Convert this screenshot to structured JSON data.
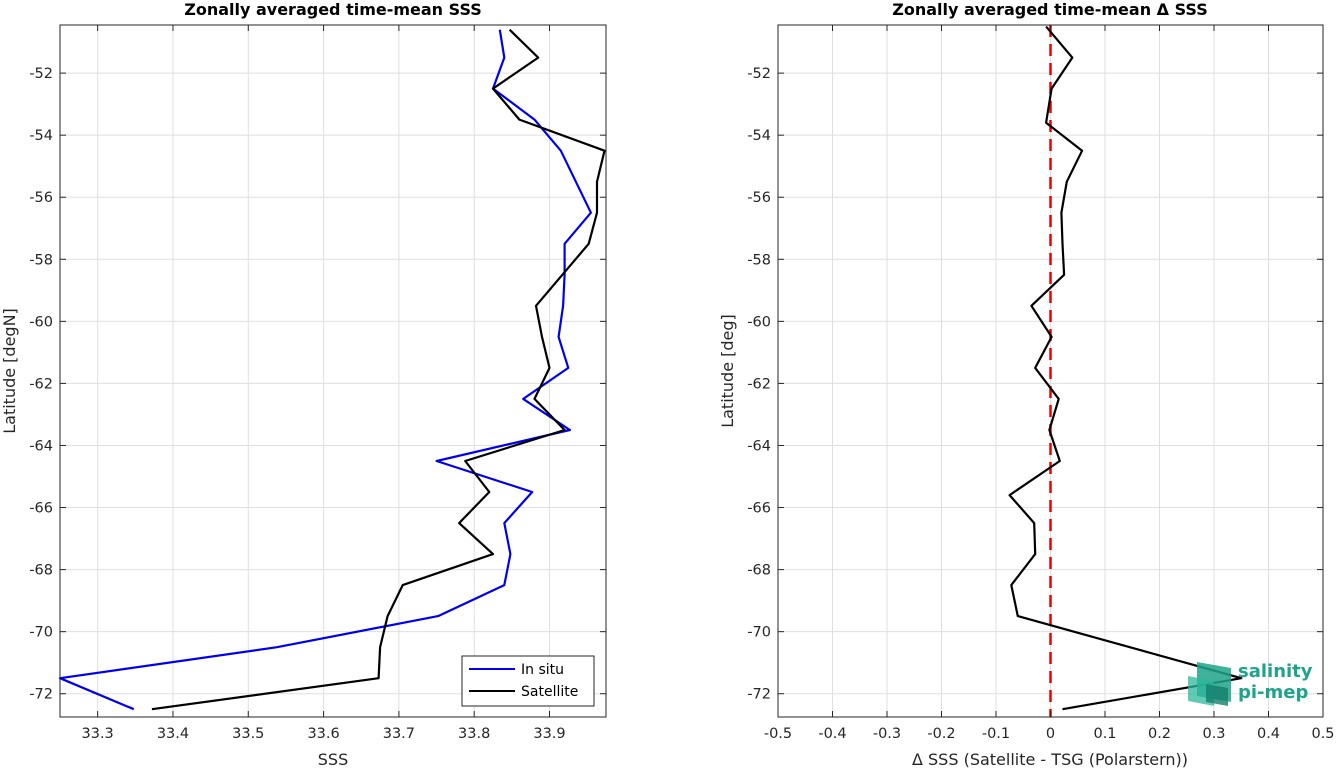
{
  "chart_data": [
    {
      "type": "line",
      "title": "Zonally averaged time-mean SSS",
      "xlabel": "SSS",
      "ylabel": "Latitude [degN]",
      "xlim": [
        33.25,
        33.975
      ],
      "ylim": [
        -72.75,
        -50.45
      ],
      "xticks": [
        "33.3",
        "33.4",
        "33.5",
        "33.6",
        "33.7",
        "33.8",
        "33.9"
      ],
      "xtick_values": [
        33.3,
        33.4,
        33.5,
        33.6,
        33.7,
        33.8,
        33.9
      ],
      "yticks": [
        "-72",
        "-70",
        "-68",
        "-66",
        "-64",
        "-62",
        "-60",
        "-58",
        "-56",
        "-54",
        "-52"
      ],
      "ytick_values": [
        -72,
        -70,
        -68,
        -66,
        -64,
        -62,
        -60,
        -58,
        -56,
        -54,
        -52
      ],
      "grid": true,
      "legend": "bottom-right",
      "series": [
        {
          "name": "In situ",
          "color": "#0000ee",
          "x": [
            33.834,
            33.84,
            33.825,
            33.88,
            33.915,
            33.955,
            33.92,
            33.92,
            33.918,
            33.912,
            33.925,
            33.865,
            33.927,
            33.75,
            33.877,
            33.84,
            33.848,
            33.84,
            33.752,
            33.538,
            33.25,
            33.348
          ],
          "y": [
            -50.6,
            -51.5,
            -52.5,
            -53.5,
            -54.5,
            -56.5,
            -57.5,
            -58.5,
            -59.5,
            -60.5,
            -61.5,
            -62.5,
            -63.5,
            -64.5,
            -65.5,
            -66.5,
            -67.5,
            -68.5,
            -69.5,
            -70.5,
            -71.5,
            -72.5
          ]
        },
        {
          "name": "Satellite",
          "color": "#000000",
          "x": [
            33.847,
            33.885,
            33.825,
            33.86,
            33.973,
            33.963,
            33.963,
            33.952,
            33.882,
            33.89,
            33.9,
            33.88,
            33.92,
            33.788,
            33.82,
            33.78,
            33.825,
            33.705,
            33.685,
            33.675,
            33.673,
            33.372
          ],
          "y": [
            -50.6,
            -51.5,
            -52.5,
            -53.5,
            -54.5,
            -55.5,
            -56.5,
            -57.5,
            -59.5,
            -60.5,
            -61.5,
            -62.5,
            -63.5,
            -64.5,
            -65.5,
            -66.5,
            -67.5,
            -68.5,
            -69.5,
            -70.5,
            -71.5,
            -72.5
          ]
        }
      ]
    },
    {
      "type": "line",
      "title": "Zonally averaged time-mean Δ SSS",
      "xlabel": "Δ SSS (Satellite - TSG (Polarstern))",
      "ylabel": "Latitude [deg]",
      "xlim": [
        -0.5,
        0.5
      ],
      "ylim": [
        -72.75,
        -50.45
      ],
      "xticks": [
        "-0.5",
        "-0.4",
        "-0.3",
        "-0.2",
        "-0.1",
        "0",
        "0.1",
        "0.2",
        "0.3",
        "0.4",
        "0.5"
      ],
      "xtick_values": [
        -0.5,
        -0.4,
        -0.3,
        -0.2,
        -0.1,
        0,
        0.1,
        0.2,
        0.3,
        0.4,
        0.5
      ],
      "yticks": [
        "-72",
        "-70",
        "-68",
        "-66",
        "-64",
        "-62",
        "-60",
        "-58",
        "-56",
        "-54",
        "-52"
      ],
      "ytick_values": [
        -72,
        -70,
        -68,
        -66,
        -64,
        -62,
        -60,
        -58,
        -56,
        -54,
        -52
      ],
      "grid": true,
      "reference_line": {
        "x": 0,
        "color": "#ee0000",
        "style": "dashed"
      },
      "series": [
        {
          "color": "#000000",
          "x": [
            -0.008,
            0.04,
            0.002,
            -0.008,
            0.058,
            0.03,
            0.02,
            0.022,
            0.025,
            -0.035,
            0.002,
            -0.028,
            0.015,
            -0.002,
            0.017,
            -0.075,
            -0.03,
            -0.028,
            -0.072,
            -0.06,
            0.35,
            0.022
          ],
          "y": [
            -50.5,
            -51.5,
            -52.5,
            -53.6,
            -54.5,
            -55.5,
            -56.5,
            -57.5,
            -58.5,
            -59.5,
            -60.5,
            -61.5,
            -62.5,
            -63.5,
            -64.5,
            -65.6,
            -66.5,
            -67.5,
            -68.5,
            -69.5,
            -71.5,
            -72.5
          ]
        }
      ]
    }
  ],
  "legend": {
    "entries": [
      "In situ",
      "Satellite"
    ]
  },
  "watermark": {
    "line1": "salinity",
    "line2": "pi-mep",
    "color": "#1fa38a"
  }
}
